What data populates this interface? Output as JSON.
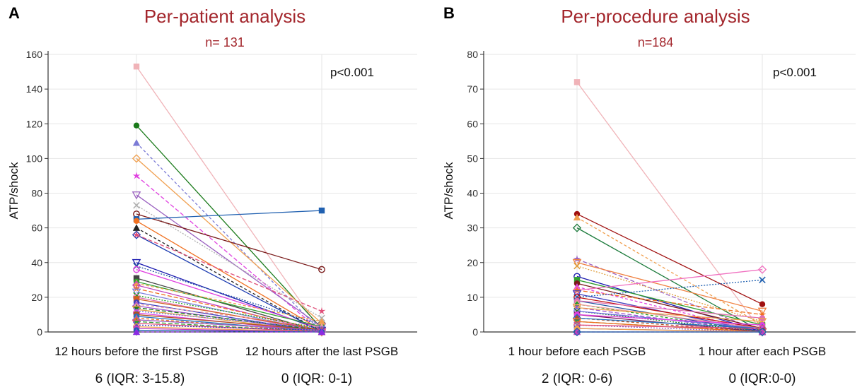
{
  "chart_data": [
    {
      "type": "line",
      "panel_label": "A",
      "title": "Per-patient analysis",
      "subtitle": "n= 131",
      "ylabel": "ATP/shock",
      "ylim": [
        0,
        160
      ],
      "yticks": [
        0,
        20,
        40,
        60,
        80,
        100,
        120,
        140,
        160
      ],
      "categories": [
        "12 hours before the first PSGB",
        "12 hours after the last PSGB"
      ],
      "summary_labels": [
        "6 (IQR: 3-15.8)",
        "0 (IQR: 0-1)"
      ],
      "annotation": "p<0.001",
      "grid": true,
      "series": [
        {
          "values": [
            153,
            0
          ],
          "color": "#f0b3b8"
        },
        {
          "values": [
            119,
            2
          ],
          "color": "#1a7a1a"
        },
        {
          "values": [
            109,
            0
          ],
          "color": "#7b7bd6"
        },
        {
          "values": [
            100,
            5
          ],
          "color": "#f0a050"
        },
        {
          "values": [
            90,
            0
          ],
          "color": "#e040e0"
        },
        {
          "values": [
            79,
            3
          ],
          "color": "#9a60c0"
        },
        {
          "values": [
            73,
            8
          ],
          "color": "#b0b0b0"
        },
        {
          "values": [
            68,
            36
          ],
          "color": "#7a1a1a"
        },
        {
          "values": [
            65,
            70
          ],
          "color": "#2060b0"
        },
        {
          "values": [
            64,
            1
          ],
          "color": "#f07020"
        },
        {
          "values": [
            60,
            0
          ],
          "color": "#222222"
        },
        {
          "values": [
            56,
            0
          ],
          "color": "#1a3ab0"
        },
        {
          "values": [
            56,
            12
          ],
          "color": "#e0507a"
        },
        {
          "values": [
            40,
            1
          ],
          "color": "#1a1ab0"
        },
        {
          "values": [
            38,
            4
          ],
          "color": "#2050a0"
        },
        {
          "values": [
            36,
            2
          ],
          "color": "#e040e0"
        },
        {
          "values": [
            31,
            0
          ],
          "color": "#444444"
        },
        {
          "values": [
            29,
            3
          ],
          "color": "#30a030"
        },
        {
          "values": [
            28,
            6
          ],
          "color": "#f0a050"
        },
        {
          "values": [
            27,
            0
          ],
          "color": "#c040c0"
        },
        {
          "values": [
            25,
            1
          ],
          "color": "#f07020"
        },
        {
          "values": [
            23,
            0
          ],
          "color": "#8080e0"
        },
        {
          "values": [
            21,
            2
          ],
          "color": "#20a020"
        },
        {
          "values": [
            20,
            0
          ],
          "color": "#e070b0"
        },
        {
          "values": [
            19,
            1
          ],
          "color": "#d06020"
        },
        {
          "values": [
            17,
            0
          ],
          "color": "#4040c0"
        },
        {
          "values": [
            16,
            3
          ],
          "color": "#f0a0a0"
        },
        {
          "values": [
            15,
            0
          ],
          "color": "#a050d0"
        },
        {
          "values": [
            14,
            1
          ],
          "color": "#1a7a1a"
        },
        {
          "values": [
            13,
            0
          ],
          "color": "#e0a040"
        },
        {
          "values": [
            12,
            2
          ],
          "color": "#7070e0"
        },
        {
          "values": [
            11,
            0
          ],
          "color": "#e040e0"
        },
        {
          "values": [
            10,
            1
          ],
          "color": "#b05020"
        },
        {
          "values": [
            9,
            0
          ],
          "color": "#2070c0"
        },
        {
          "values": [
            8,
            0
          ],
          "color": "#f07020"
        },
        {
          "values": [
            7,
            1
          ],
          "color": "#9a60c0"
        },
        {
          "values": [
            6,
            0
          ],
          "color": "#30a030"
        },
        {
          "values": [
            5,
            0
          ],
          "color": "#e0507a"
        },
        {
          "values": [
            4,
            1
          ],
          "color": "#4040c0"
        },
        {
          "values": [
            3,
            0
          ],
          "color": "#f0a050"
        },
        {
          "values": [
            2,
            0
          ],
          "color": "#c040c0"
        },
        {
          "values": [
            1,
            0
          ],
          "color": "#2060b0"
        },
        {
          "values": [
            0,
            0
          ],
          "color": "#8a2be2"
        }
      ]
    },
    {
      "type": "line",
      "panel_label": "B",
      "title": "Per-procedure analysis",
      "subtitle": "n=184",
      "ylabel": "ATP/shock",
      "ylim": [
        0,
        80
      ],
      "yticks": [
        0,
        10,
        20,
        30,
        40,
        50,
        60,
        70,
        80
      ],
      "categories": [
        "1 hour before each PSGB",
        "1 hour after each PSGB"
      ],
      "summary_labels": [
        "2 (IQR: 0-6)",
        "0 (IQR:0-0)"
      ],
      "annotation": "p<0.001",
      "grid": true,
      "series": [
        {
          "values": [
            72,
            0
          ],
          "color": "#f0b3b8"
        },
        {
          "values": [
            34,
            8
          ],
          "color": "#a01010"
        },
        {
          "values": [
            33,
            2
          ],
          "color": "#f0a050"
        },
        {
          "values": [
            30,
            0
          ],
          "color": "#1a7a3a"
        },
        {
          "values": [
            21,
            0
          ],
          "color": "#9a60c0"
        },
        {
          "values": [
            20,
            6
          ],
          "color": "#f08040"
        },
        {
          "values": [
            19,
            3
          ],
          "color": "#e0a040"
        },
        {
          "values": [
            16,
            0
          ],
          "color": "#1a1ab0"
        },
        {
          "values": [
            15,
            2
          ],
          "color": "#30a030"
        },
        {
          "values": [
            14,
            1
          ],
          "color": "#7a1a1a"
        },
        {
          "values": [
            13,
            0
          ],
          "color": "#e040e0"
        },
        {
          "values": [
            12,
            18
          ],
          "color": "#f070c0"
        },
        {
          "values": [
            12,
            5
          ],
          "color": "#f07020"
        },
        {
          "values": [
            11,
            0
          ],
          "color": "#4040c0"
        },
        {
          "values": [
            10,
            15
          ],
          "color": "#2060b0"
        },
        {
          "values": [
            10,
            1
          ],
          "color": "#c01010"
        },
        {
          "values": [
            9,
            0
          ],
          "color": "#2050a0"
        },
        {
          "values": [
            9,
            4
          ],
          "color": "#e070b0"
        },
        {
          "values": [
            8,
            0
          ],
          "color": "#20a020"
        },
        {
          "values": [
            8,
            1
          ],
          "color": "#f0a0a0"
        },
        {
          "values": [
            7,
            0
          ],
          "color": "#a050d0"
        },
        {
          "values": [
            7,
            3
          ],
          "color": "#f0a050"
        },
        {
          "values": [
            6,
            0
          ],
          "color": "#1a7a1a"
        },
        {
          "values": [
            6,
            1
          ],
          "color": "#7070e0"
        },
        {
          "values": [
            5,
            0
          ],
          "color": "#7a1a5a"
        },
        {
          "values": [
            5,
            2
          ],
          "color": "#e040e0"
        },
        {
          "values": [
            4,
            0
          ],
          "color": "#b05020"
        },
        {
          "values": [
            4,
            1
          ],
          "color": "#2070c0"
        },
        {
          "values": [
            3,
            0
          ],
          "color": "#30a030"
        },
        {
          "values": [
            3,
            0
          ],
          "color": "#f07020"
        },
        {
          "values": [
            2,
            0
          ],
          "color": "#9a60c0"
        },
        {
          "values": [
            2,
            1
          ],
          "color": "#e0507a"
        },
        {
          "values": [
            1,
            0
          ],
          "color": "#4040c0"
        },
        {
          "values": [
            1,
            0
          ],
          "color": "#f0a050"
        },
        {
          "values": [
            0,
            0
          ],
          "color": "#c040c0"
        },
        {
          "values": [
            0,
            0
          ],
          "color": "#2060b0"
        }
      ]
    }
  ]
}
